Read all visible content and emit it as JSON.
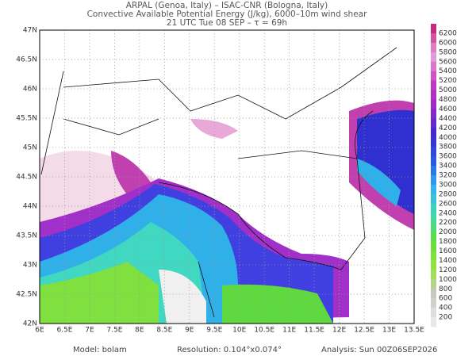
{
  "header": {
    "line1": "ARPAL (Genoa, Italy)  –  ISAC-CNR (Bologna, Italy)",
    "line2": "Convective Available Potential Energy (J/kg), 6000–10m wind shear",
    "line3": "21 UTC Tue 08 SEP  –  τ = 69h"
  },
  "map": {
    "lat_labels": [
      "47N",
      "46.5N",
      "46N",
      "45.5N",
      "45N",
      "44.5N",
      "44N",
      "43.5N",
      "43N",
      "42.5N",
      "42N"
    ],
    "lon_labels": [
      "6E",
      "6.5E",
      "7E",
      "7.5E",
      "8E",
      "8.5E",
      "9E",
      "9.5E",
      "10E",
      "10.5E",
      "11E",
      "11.5E",
      "12E",
      "12.5E",
      "13E",
      "13.5E"
    ]
  },
  "colorbar": {
    "labels": [
      6200,
      6000,
      5800,
      5600,
      5400,
      5200,
      5000,
      4800,
      4600,
      4400,
      4200,
      4000,
      3800,
      3600,
      3400,
      3200,
      3000,
      2800,
      2600,
      2400,
      2200,
      2000,
      1800,
      1600,
      1400,
      1200,
      1000,
      800,
      600,
      400,
      200
    ]
  },
  "footer": {
    "model": "Model: bolam",
    "resolution": "Resolution: 0.104°x0.074°",
    "analysis": "Analysis: Sun 00Z06SEP2026"
  }
}
